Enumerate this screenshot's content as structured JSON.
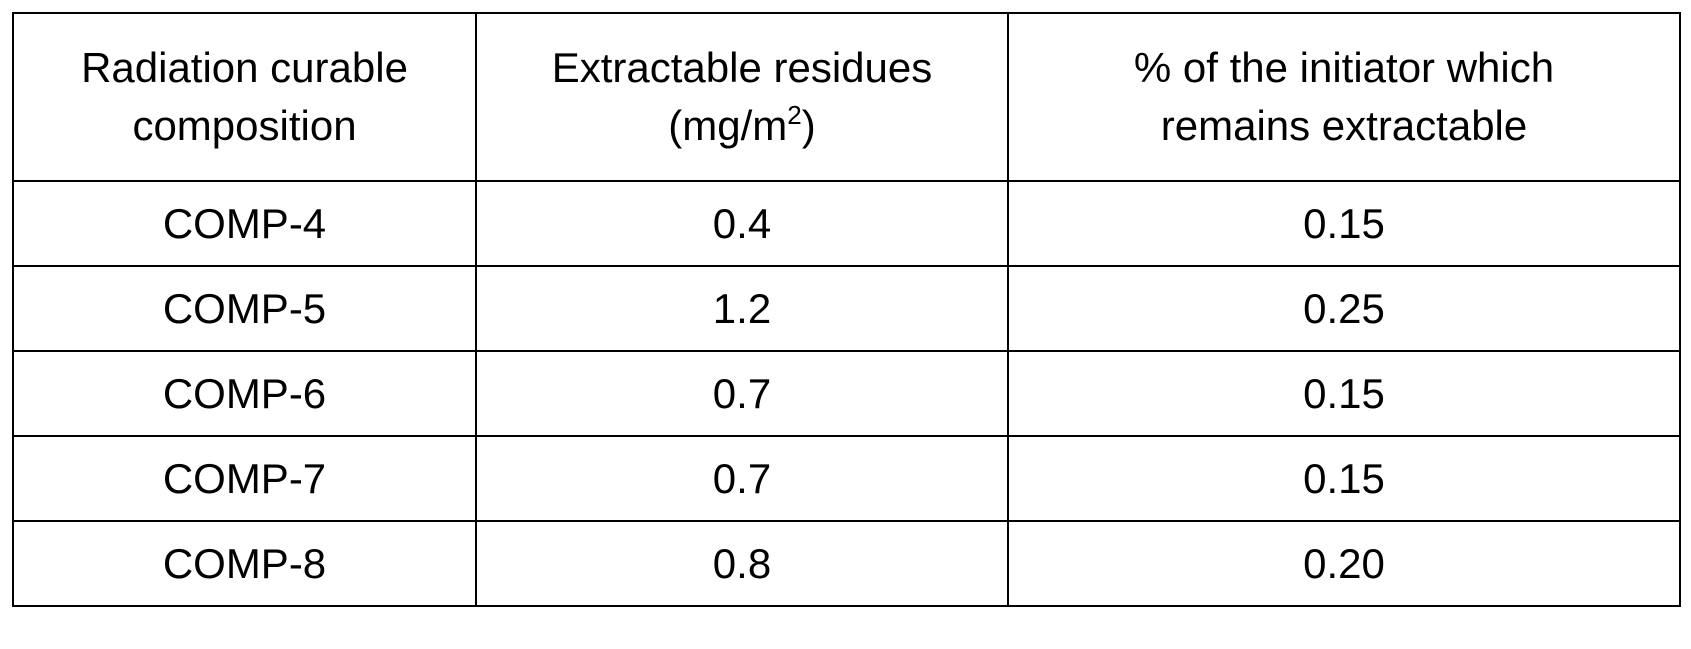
{
  "table": {
    "headers": [
      {
        "line1": "Radiation curable",
        "line2": "composition",
        "sup": "",
        "tail": ""
      },
      {
        "line1": "Extractable residues",
        "line2": "(mg/m",
        "sup": "2",
        "tail": ")"
      },
      {
        "line1": "% of the initiator which",
        "line2": "remains extractable",
        "sup": "",
        "tail": ""
      }
    ],
    "rows": [
      [
        "COMP-4",
        "0.4",
        "0.15"
      ],
      [
        "COMP-5",
        "1.2",
        "0.25"
      ],
      [
        "COMP-6",
        "0.7",
        "0.15"
      ],
      [
        "COMP-7",
        "0.7",
        "0.15"
      ],
      [
        "COMP-8",
        "0.8",
        "0.20"
      ]
    ]
  }
}
